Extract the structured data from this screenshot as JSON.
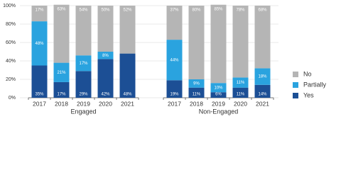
{
  "chart_data": {
    "type": "stacked_bar",
    "categories": [
      "2017",
      "2018",
      "2019",
      "2020",
      "2021",
      "2017",
      "2018",
      "2019",
      "2020",
      "2021"
    ],
    "groups": [
      "Engaged",
      "Non-Engaged"
    ],
    "series": [
      {
        "name": "Yes",
        "color": "#1c4f95",
        "values": [
          35,
          17,
          29,
          42,
          48,
          19,
          11,
          6,
          11,
          14
        ],
        "value_labels": [
          "35%",
          "17%",
          "29%",
          "42%",
          "48%",
          "19%",
          "11%",
          "6%",
          "11%",
          "14%"
        ]
      },
      {
        "name": "Partially",
        "color": "#2aa3df",
        "values": [
          48,
          21,
          17,
          8,
          0,
          44,
          9,
          10,
          11,
          18
        ],
        "value_labels": [
          "48%",
          "21%",
          "17%",
          "8%",
          null,
          "44%",
          "9%",
          "10%",
          "11%",
          "18%"
        ]
      },
      {
        "name": "No",
        "color": "#b5b5b5",
        "values": [
          17,
          63,
          54,
          50,
          52,
          37,
          80,
          85,
          78,
          68
        ],
        "value_labels": [
          "17%",
          "63%",
          "54%",
          "50%",
          "52%",
          "37%",
          "80%",
          "85%",
          "78%",
          "68%"
        ]
      }
    ],
    "ylim": [
      0,
      100
    ],
    "yticks": [
      {
        "value": 0,
        "label": "0%"
      },
      {
        "value": 20,
        "label": "20%"
      },
      {
        "value": 40,
        "label": "40%"
      },
      {
        "value": 60,
        "label": "60%"
      },
      {
        "value": 80,
        "label": "80%"
      },
      {
        "value": 100,
        "label": "100%"
      }
    ],
    "grid": true,
    "legend": "right"
  }
}
